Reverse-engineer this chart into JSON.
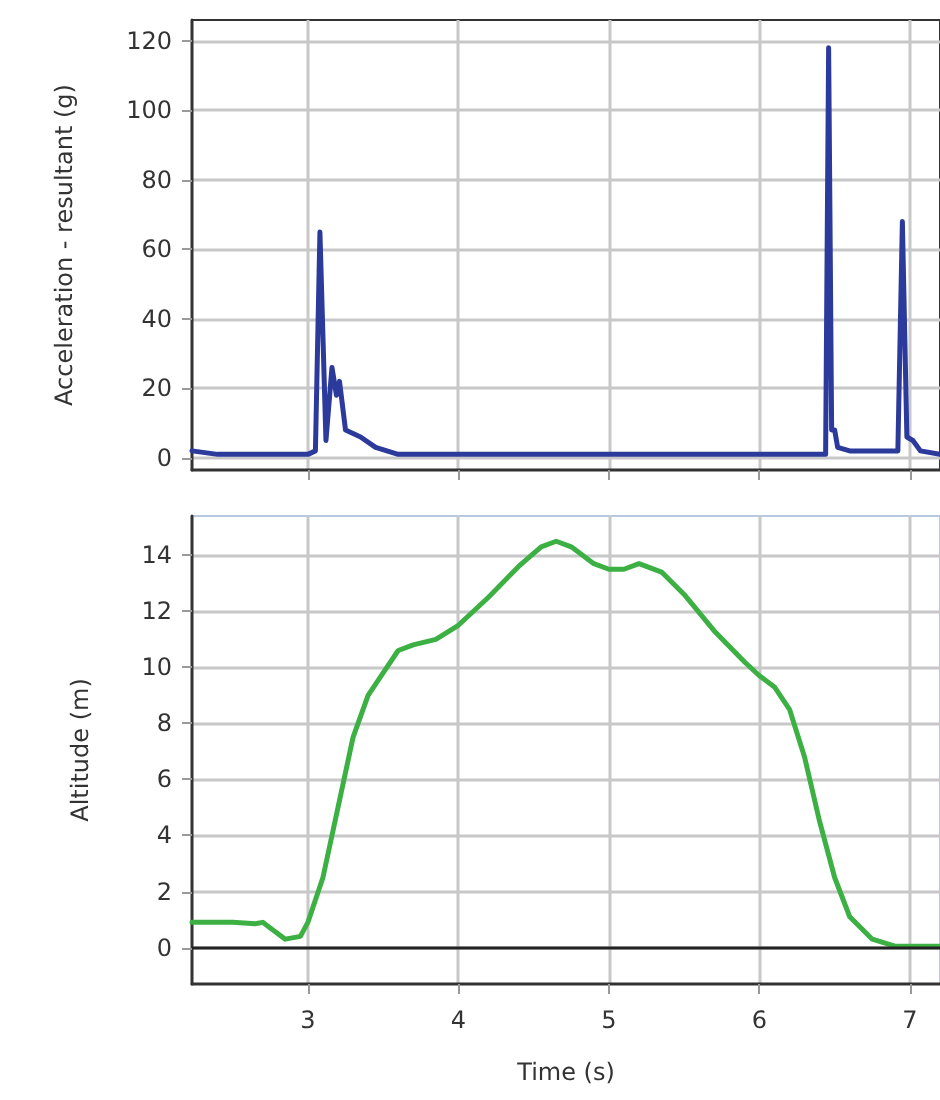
{
  "chart_data": [
    {
      "type": "line",
      "ylabel": "Acceleration - resultant (g)",
      "xlim": [
        2.23,
        7.2
      ],
      "xticks": [
        3,
        4,
        5,
        6,
        7
      ],
      "ylim": [
        -3.5,
        126
      ],
      "yticks": [
        0,
        20,
        40,
        60,
        80,
        100,
        120
      ],
      "grid": true,
      "tick_labels": "y",
      "marker": "none",
      "series": [
        {
          "color": "#2b3a9b",
          "x": [
            2.23,
            2.4,
            3.0,
            3.05,
            3.08,
            3.12,
            3.16,
            3.19,
            3.21,
            3.25,
            3.35,
            3.45,
            3.6,
            4.5,
            6.0,
            6.44,
            6.46,
            6.48,
            6.5,
            6.52,
            6.6,
            6.92,
            6.95,
            6.98,
            7.02,
            7.07,
            7.2
          ],
          "values": [
            2,
            1,
            1,
            2,
            65,
            5,
            26,
            18,
            22,
            8,
            6,
            3,
            1,
            1,
            1,
            1,
            118,
            8,
            8,
            3,
            2,
            2,
            68,
            6,
            5,
            2,
            1
          ]
        }
      ]
    },
    {
      "type": "line",
      "xlabel": "Time (s)",
      "ylabel": "Altitude (m)",
      "xlim": [
        2.23,
        7.2
      ],
      "xticks": [
        3,
        4,
        5,
        6,
        7
      ],
      "ylim": [
        -1.3,
        15.4
      ],
      "yticks": [
        0,
        2,
        4,
        6,
        8,
        10,
        12,
        14
      ],
      "grid": true,
      "marker": "none",
      "ref_lines": [
        {
          "axis": "y",
          "value": 0,
          "color": "#222222"
        }
      ],
      "series": [
        {
          "color": "#3cb043",
          "x": [
            2.23,
            2.5,
            2.65,
            2.7,
            2.75,
            2.85,
            2.95,
            3.0,
            3.1,
            3.2,
            3.3,
            3.4,
            3.5,
            3.6,
            3.7,
            3.85,
            4.0,
            4.2,
            4.4,
            4.55,
            4.65,
            4.75,
            4.9,
            5.0,
            5.1,
            5.2,
            5.35,
            5.5,
            5.7,
            5.9,
            6.0,
            6.1,
            6.2,
            6.3,
            6.4,
            6.5,
            6.6,
            6.75,
            6.9,
            7.2
          ],
          "values": [
            0.9,
            0.9,
            0.85,
            0.9,
            0.7,
            0.3,
            0.4,
            0.9,
            2.5,
            5,
            7.5,
            9,
            9.8,
            10.6,
            10.8,
            11,
            11.5,
            12.5,
            13.6,
            14.3,
            14.5,
            14.3,
            13.7,
            13.5,
            13.5,
            13.7,
            13.4,
            12.6,
            11.3,
            10.2,
            9.7,
            9.3,
            8.5,
            6.8,
            4.5,
            2.5,
            1.1,
            0.3,
            0.05,
            0.05
          ]
        }
      ]
    }
  ]
}
